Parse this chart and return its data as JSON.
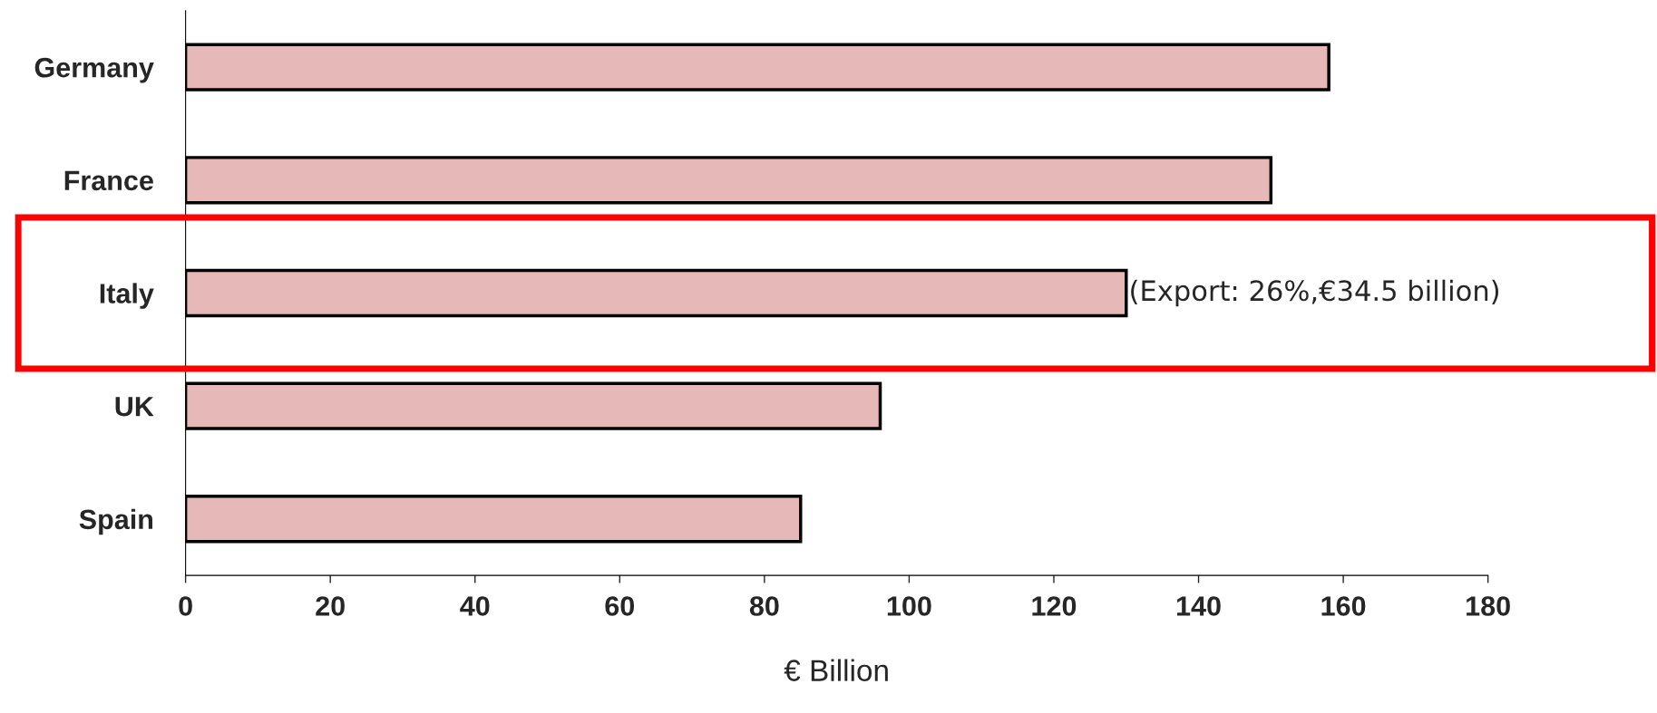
{
  "chart_data": {
    "type": "bar",
    "orientation": "horizontal",
    "xlabel": "€ Billion",
    "categories": [
      "Germany",
      "France",
      "Italy",
      "UK",
      "Spain"
    ],
    "values": [
      158,
      150,
      130,
      96,
      85
    ],
    "color": "#e6b8b7",
    "xlim": [
      0,
      180
    ],
    "xticks": [
      0,
      20,
      40,
      60,
      80,
      100,
      120,
      140,
      160,
      180
    ],
    "grid": false,
    "legend": false,
    "annotations": [
      {
        "text": "(Export: 26%,€34.5 billion)",
        "x": 130,
        "y": "Italy"
      }
    ]
  }
}
